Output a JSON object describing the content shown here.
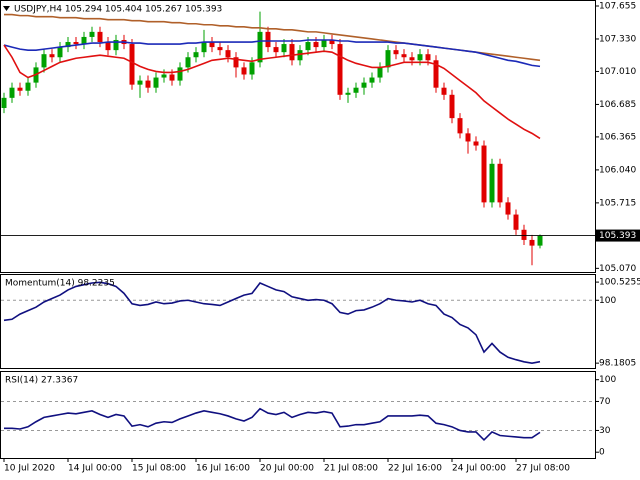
{
  "chart_data": [
    {
      "type": "candlestick",
      "title": "USDJPY,H4  105.294 105.404 105.267 105.393",
      "up_color": "#00a000",
      "down_color": "#e00000",
      "categories": [
        "10 Jul 2020",
        null,
        null,
        null,
        null,
        null,
        null,
        null,
        "14 Jul 00:00",
        null,
        null,
        null,
        null,
        null,
        null,
        null,
        "15 Jul 08:00",
        null,
        null,
        null,
        null,
        null,
        null,
        null,
        "16 Jul 16:00",
        null,
        null,
        null,
        null,
        null,
        null,
        null,
        "20 Jul 00:00",
        null,
        null,
        null,
        null,
        null,
        null,
        null,
        "21 Jul 08:00",
        null,
        null,
        null,
        null,
        null,
        null,
        null,
        "22 Jul 16:00",
        null,
        null,
        null,
        null,
        null,
        null,
        null,
        "24 Jul 00:00",
        null,
        null,
        null,
        null,
        null,
        null,
        null,
        "27 Jul 08:00",
        null,
        null,
        null
      ],
      "open": [
        106.65,
        106.75,
        106.85,
        106.82,
        106.9,
        107.05,
        107.18,
        107.15,
        107.25,
        107.3,
        107.28,
        107.35,
        107.4,
        107.3,
        107.22,
        107.32,
        107.28,
        106.88,
        106.92,
        106.85,
        106.95,
        106.98,
        106.92,
        107.05,
        107.15,
        107.2,
        107.3,
        107.25,
        107.22,
        107.15,
        107.05,
        106.98,
        107.1,
        107.4,
        107.25,
        107.2,
        107.28,
        107.12,
        107.22,
        107.3,
        107.25,
        107.32,
        107.28,
        106.78,
        106.8,
        106.85,
        106.9,
        106.95,
        107.05,
        107.22,
        107.18,
        107.15,
        107.12,
        107.18,
        107.12,
        106.85,
        106.78,
        106.55,
        106.4,
        106.32,
        106.28,
        105.72,
        106.1,
        105.72,
        105.6,
        105.45,
        105.35,
        105.294
      ],
      "high": [
        106.8,
        106.9,
        106.9,
        106.95,
        107.1,
        107.23,
        107.23,
        107.3,
        107.35,
        107.35,
        107.4,
        107.45,
        107.45,
        107.35,
        107.37,
        107.37,
        107.33,
        106.97,
        106.97,
        107.0,
        107.03,
        107.03,
        107.1,
        107.2,
        107.25,
        107.42,
        107.35,
        107.3,
        107.27,
        107.2,
        107.1,
        107.15,
        107.6,
        107.45,
        107.3,
        107.33,
        107.33,
        107.27,
        107.35,
        107.35,
        107.37,
        107.37,
        107.33,
        106.85,
        106.9,
        106.95,
        107.0,
        107.1,
        107.27,
        107.27,
        107.23,
        107.2,
        107.23,
        107.23,
        107.17,
        106.9,
        106.83,
        106.6,
        106.45,
        106.37,
        106.33,
        106.15,
        106.15,
        105.77,
        105.65,
        105.5,
        105.4,
        105.404
      ],
      "low": [
        106.6,
        106.7,
        106.77,
        106.77,
        106.85,
        107.0,
        107.1,
        107.1,
        107.2,
        107.23,
        107.23,
        107.3,
        107.25,
        107.17,
        107.17,
        107.23,
        106.83,
        106.75,
        106.8,
        106.8,
        106.9,
        106.87,
        106.87,
        107.0,
        107.1,
        107.15,
        107.2,
        107.17,
        107.1,
        106.95,
        106.93,
        106.93,
        107.05,
        107.2,
        107.15,
        107.15,
        107.07,
        107.07,
        107.17,
        107.2,
        107.2,
        107.23,
        106.73,
        106.7,
        106.75,
        106.78,
        106.85,
        106.9,
        107.0,
        107.13,
        107.1,
        107.07,
        107.07,
        107.07,
        106.8,
        106.73,
        106.5,
        106.35,
        106.2,
        106.23,
        105.67,
        105.67,
        105.67,
        105.55,
        105.4,
        105.3,
        105.1,
        105.267
      ],
      "close": [
        106.75,
        106.85,
        106.82,
        106.9,
        107.05,
        107.18,
        107.15,
        107.25,
        107.3,
        107.28,
        107.35,
        107.4,
        107.3,
        107.22,
        107.32,
        107.28,
        106.88,
        106.92,
        106.85,
        106.95,
        106.98,
        106.92,
        107.05,
        107.15,
        107.2,
        107.3,
        107.25,
        107.22,
        107.15,
        107.05,
        106.98,
        107.1,
        107.4,
        107.25,
        107.2,
        107.28,
        107.12,
        107.22,
        107.3,
        107.25,
        107.32,
        107.28,
        106.78,
        106.8,
        106.85,
        106.9,
        106.95,
        107.05,
        107.22,
        107.18,
        107.15,
        107.12,
        107.18,
        107.12,
        106.85,
        106.78,
        106.55,
        106.4,
        106.32,
        106.28,
        105.72,
        106.1,
        105.72,
        105.6,
        105.45,
        105.35,
        105.294,
        105.393
      ],
      "series": [
        {
          "color": "#b0602a",
          "values": [
            107.57,
            107.57,
            107.56,
            107.56,
            107.55,
            107.55,
            107.55,
            107.54,
            107.54,
            107.54,
            107.53,
            107.53,
            107.53,
            107.52,
            107.52,
            107.52,
            107.51,
            107.51,
            107.5,
            107.5,
            107.5,
            107.49,
            107.49,
            107.48,
            107.48,
            107.47,
            107.47,
            107.46,
            107.46,
            107.45,
            107.45,
            107.44,
            107.44,
            107.43,
            107.43,
            107.42,
            107.42,
            107.41,
            107.4,
            107.4,
            107.39,
            107.38,
            107.37,
            107.36,
            107.35,
            107.34,
            107.33,
            107.32,
            107.31,
            107.3,
            107.29,
            107.28,
            107.27,
            107.26,
            107.25,
            107.24,
            107.23,
            107.22,
            107.21,
            107.2,
            107.19,
            107.18,
            107.17,
            107.16,
            107.15,
            107.14,
            107.13,
            107.12
          ]
        },
        {
          "color": "#1c2ab8",
          "values": [
            107.27,
            107.25,
            107.23,
            107.22,
            107.22,
            107.23,
            107.24,
            107.25,
            107.26,
            107.27,
            107.28,
            107.29,
            107.29,
            107.3,
            107.3,
            107.3,
            107.29,
            107.29,
            107.28,
            107.28,
            107.28,
            107.28,
            107.28,
            107.29,
            107.29,
            107.3,
            107.3,
            107.3,
            107.3,
            107.3,
            107.3,
            107.3,
            107.31,
            107.31,
            107.31,
            107.31,
            107.31,
            107.31,
            107.32,
            107.32,
            107.32,
            107.32,
            107.31,
            107.31,
            107.3,
            107.3,
            107.3,
            107.3,
            107.3,
            107.29,
            107.29,
            107.28,
            107.27,
            107.26,
            107.25,
            107.24,
            107.23,
            107.22,
            107.21,
            107.2,
            107.18,
            107.16,
            107.14,
            107.12,
            107.11,
            107.09,
            107.07,
            107.06
          ]
        },
        {
          "color": "#e01010",
          "values": [
            107.27,
            107.15,
            107.0,
            106.95,
            106.98,
            107.02,
            107.06,
            107.1,
            107.12,
            107.14,
            107.15,
            107.16,
            107.17,
            107.16,
            107.15,
            107.14,
            107.1,
            107.06,
            107.03,
            107.01,
            107.0,
            107.0,
            107.01,
            107.03,
            107.06,
            107.09,
            107.12,
            107.13,
            107.14,
            107.13,
            107.12,
            107.11,
            107.13,
            107.14,
            107.15,
            107.16,
            107.17,
            107.18,
            107.19,
            107.2,
            107.21,
            107.2,
            107.16,
            107.12,
            107.09,
            107.07,
            107.05,
            107.05,
            107.06,
            107.08,
            107.1,
            107.1,
            107.1,
            107.1,
            107.08,
            107.04,
            106.98,
            106.92,
            106.86,
            106.8,
            106.72,
            106.66,
            106.6,
            106.54,
            106.49,
            106.44,
            106.4,
            106.35
          ]
        }
      ],
      "current_price": 105.393,
      "ylim": [
        105.034,
        107.714
      ],
      "yticks": [
        107.655,
        {
          "value": 107.33,
          "label": "107.330"
        },
        {
          "value": 107.01,
          "label": "107.010"
        },
        106.685,
        106.365,
        {
          "value": 106.04,
          "label": "106.040"
        },
        105.715,
        {
          "value": 105.07,
          "label": "105.070"
        }
      ]
    },
    {
      "type": "line",
      "title": "Momentum(14) 98.2235",
      "series": [
        {
          "color": "#101080",
          "values": [
            99.42,
            99.45,
            99.6,
            99.7,
            99.8,
            99.95,
            100.05,
            100.15,
            100.3,
            100.4,
            100.45,
            100.5,
            100.52,
            100.48,
            100.4,
            100.2,
            99.9,
            99.85,
            99.88,
            99.95,
            99.9,
            99.92,
            99.98,
            100.0,
            99.95,
            99.9,
            99.88,
            99.85,
            99.95,
            100.05,
            100.15,
            100.2,
            100.5,
            100.4,
            100.3,
            100.25,
            100.1,
            100.05,
            100.0,
            100.02,
            100.0,
            99.9,
            99.65,
            99.6,
            99.7,
            99.72,
            99.8,
            99.9,
            100.05,
            100.0,
            99.98,
            99.95,
            100.0,
            99.9,
            99.85,
            99.6,
            99.5,
            99.3,
            99.2,
            99.0,
            98.5,
            98.75,
            98.5,
            98.35,
            98.28,
            98.22,
            98.18,
            98.2235
          ]
        }
      ],
      "levels": [
        100
      ],
      "ylim": [
        98.04,
        100.76
      ],
      "yticks": [
        100.5255,
        100,
        98.1805
      ]
    },
    {
      "type": "line",
      "title": "RSI(14) 27.3367",
      "series": [
        {
          "color": "#101080",
          "values": [
            33,
            33,
            32,
            35,
            42,
            48,
            50,
            52,
            54,
            53,
            55,
            57,
            52,
            48,
            52,
            50,
            36,
            38,
            35,
            40,
            42,
            41,
            46,
            50,
            54,
            57,
            55,
            53,
            50,
            46,
            43,
            48,
            60,
            54,
            52,
            55,
            48,
            52,
            55,
            54,
            56,
            54,
            35,
            36,
            38,
            38,
            40,
            42,
            50,
            50,
            50,
            50,
            51,
            50,
            40,
            38,
            35,
            30,
            28,
            28,
            17,
            28,
            23,
            22,
            21,
            20,
            20,
            27.3367
          ]
        }
      ],
      "levels": [
        70,
        30
      ],
      "ylim": [
        -8,
        112
      ],
      "yticks": [
        100,
        70,
        30,
        0
      ]
    }
  ]
}
